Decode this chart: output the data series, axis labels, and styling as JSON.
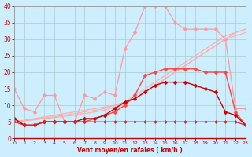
{
  "title": "",
  "xlabel": "Vent moyen/en rafales ( km/h )",
  "ylabel": "",
  "background_color": "#cceeff",
  "grid_color": "#aacccc",
  "x": [
    0,
    1,
    2,
    3,
    4,
    5,
    6,
    7,
    8,
    9,
    10,
    11,
    12,
    13,
    14,
    15,
    16,
    17,
    18,
    19,
    20,
    21,
    22,
    23
  ],
  "series": [
    {
      "color": "#ff9999",
      "linewidth": 0.9,
      "markersize": 2.5,
      "marker": "D",
      "data": [
        15,
        9,
        8,
        13,
        13,
        5,
        5,
        13,
        12,
        14,
        13,
        27,
        32,
        40,
        40,
        40,
        35,
        33,
        33,
        33,
        33,
        30,
        9,
        9
      ]
    },
    {
      "color": "#ffaaaa",
      "linewidth": 0.8,
      "markersize": 0,
      "marker": null,
      "data": [
        5,
        5.5,
        6,
        6.5,
        7,
        7.5,
        8,
        8.5,
        9,
        9.5,
        10,
        11,
        12,
        14,
        16,
        18,
        20,
        22,
        24,
        26,
        28,
        30,
        32,
        33
      ]
    },
    {
      "color": "#ffaaaa",
      "linewidth": 0.8,
      "markersize": 0,
      "marker": null,
      "data": [
        5,
        5.4,
        5.8,
        6.2,
        6.6,
        7,
        7.5,
        8,
        8.5,
        9,
        10,
        11,
        13,
        15,
        17,
        19,
        21,
        23,
        25,
        27,
        29,
        31,
        32,
        33
      ]
    },
    {
      "color": "#ffaaaa",
      "linewidth": 0.8,
      "markersize": 0,
      "marker": null,
      "data": [
        5,
        5.3,
        5.6,
        6,
        6.3,
        6.7,
        7,
        7.5,
        8,
        8.5,
        9.5,
        10.5,
        12,
        14,
        16,
        18,
        20,
        22,
        24,
        26,
        28,
        30,
        31,
        32
      ]
    },
    {
      "color": "#ff4444",
      "linewidth": 1.0,
      "markersize": 2.5,
      "marker": "D",
      "data": [
        6,
        4,
        4,
        5,
        5,
        5,
        5,
        5,
        6,
        7,
        8,
        10,
        13,
        19,
        20,
        21,
        21,
        21,
        21,
        20,
        20,
        20,
        8,
        4
      ]
    },
    {
      "color": "#cc0000",
      "linewidth": 1.0,
      "markersize": 2.5,
      "marker": "D",
      "data": [
        6,
        4,
        4,
        5,
        5,
        5,
        5,
        6,
        6,
        7,
        9,
        11,
        12,
        14,
        16,
        17,
        17,
        17,
        16,
        15,
        14,
        8,
        7,
        4
      ]
    },
    {
      "color": "#dd2222",
      "linewidth": 0.9,
      "markersize": 2.0,
      "marker": "D",
      "data": [
        5,
        4,
        4,
        5,
        5,
        5,
        5,
        5,
        5,
        5,
        5,
        5,
        5,
        5,
        5,
        5,
        5,
        5,
        5,
        5,
        5,
        5,
        5,
        4
      ]
    }
  ],
  "ylim": [
    0,
    40
  ],
  "xlim": [
    0,
    23
  ],
  "yticks": [
    0,
    5,
    10,
    15,
    20,
    25,
    30,
    35,
    40
  ],
  "xticks": [
    0,
    1,
    2,
    3,
    4,
    5,
    6,
    7,
    8,
    9,
    10,
    11,
    12,
    13,
    14,
    15,
    16,
    17,
    18,
    19,
    20,
    21,
    22,
    23
  ]
}
